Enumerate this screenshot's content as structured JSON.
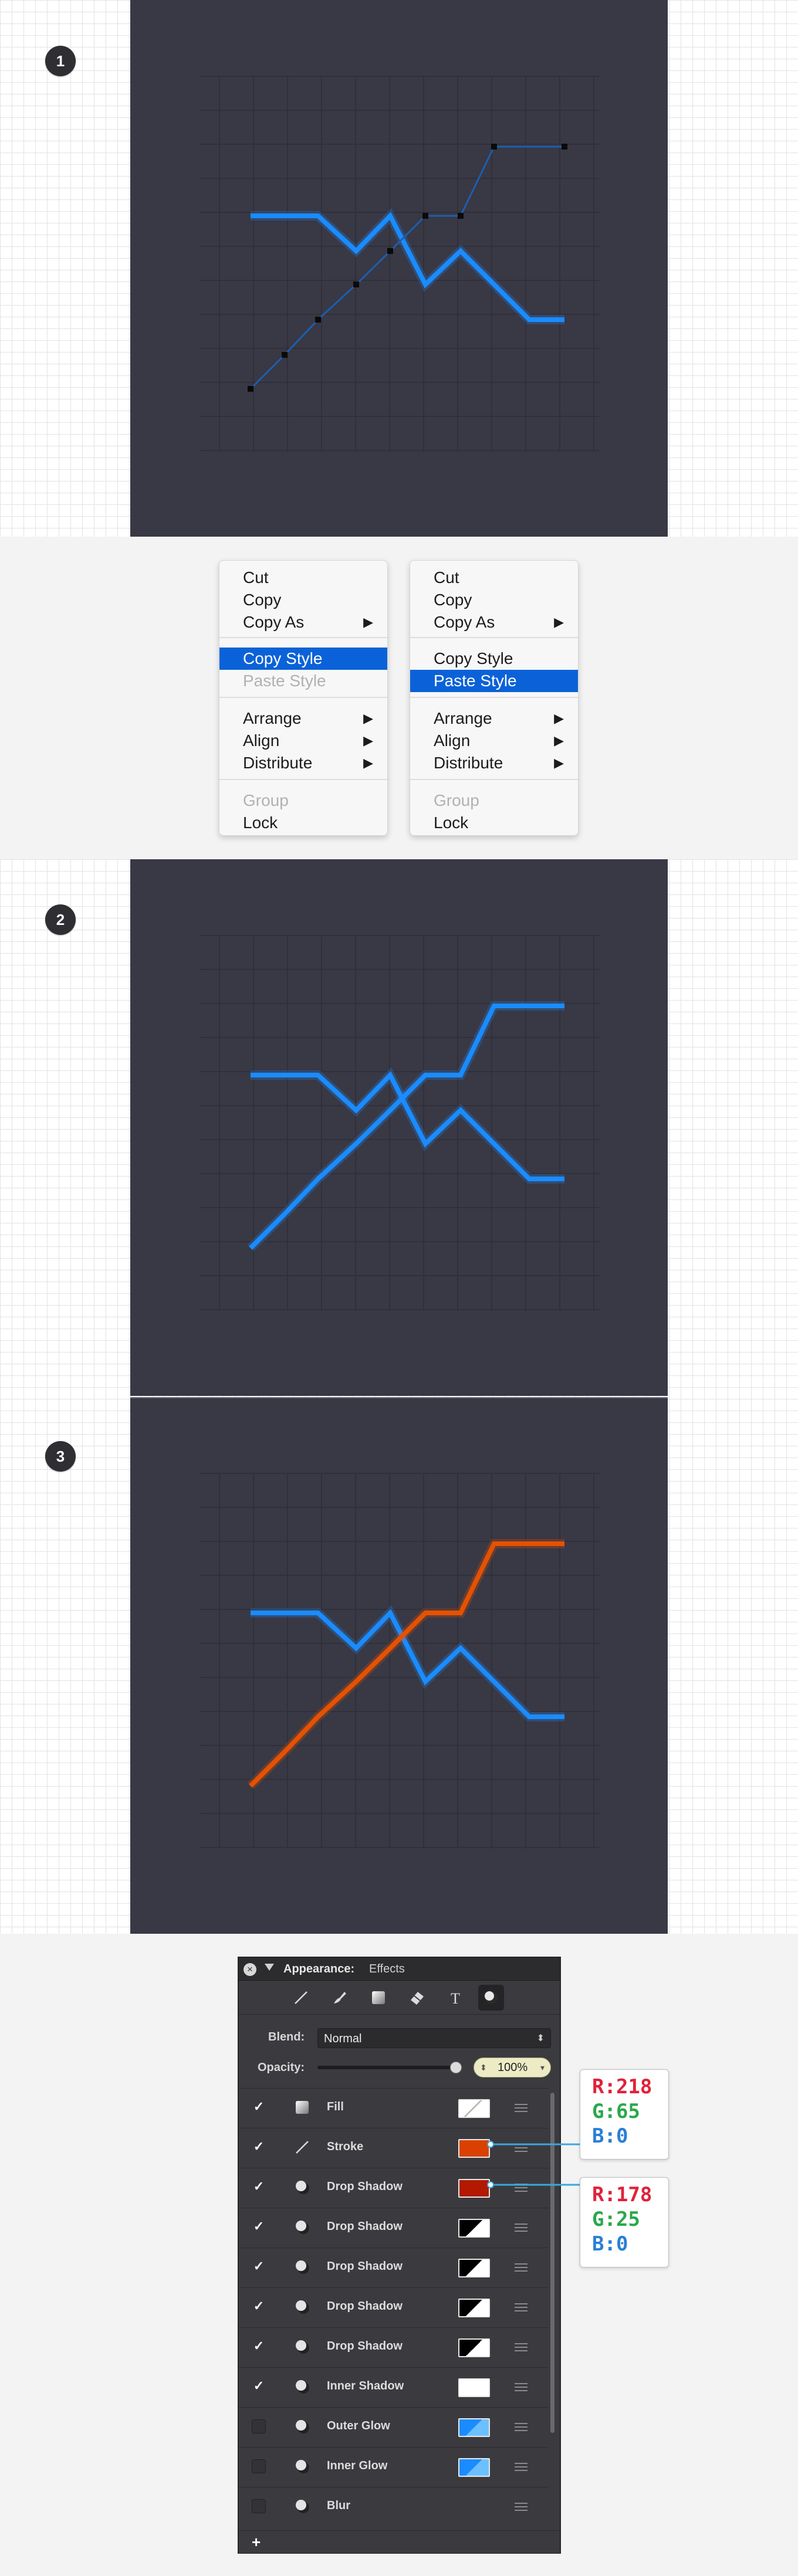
{
  "steps": [
    "1",
    "2",
    "3"
  ],
  "colors": {
    "canvas": "#393845",
    "blue_line": "#1a8cff",
    "orange_line": "#e65100",
    "menu_highlight": "#0b62d8",
    "stroke_swatch": "#da4100",
    "shadow_swatch": "#b21900"
  },
  "menu_left": {
    "items": [
      {
        "label": "Cut"
      },
      {
        "label": "Copy"
      },
      {
        "label": "Copy As",
        "submenu": true
      },
      {
        "label": "Copy Style",
        "highlighted": true
      },
      {
        "label": "Paste Style",
        "disabled": true
      },
      {
        "label": "Arrange",
        "submenu": true
      },
      {
        "label": "Align",
        "submenu": true
      },
      {
        "label": "Distribute",
        "submenu": true
      },
      {
        "label": "Group",
        "disabled": true
      },
      {
        "label": "Lock"
      }
    ]
  },
  "menu_right": {
    "items": [
      {
        "label": "Cut"
      },
      {
        "label": "Copy"
      },
      {
        "label": "Copy As",
        "submenu": true
      },
      {
        "label": "Copy Style"
      },
      {
        "label": "Paste Style",
        "highlighted": true
      },
      {
        "label": "Arrange",
        "submenu": true
      },
      {
        "label": "Align",
        "submenu": true
      },
      {
        "label": "Distribute",
        "submenu": true
      },
      {
        "label": "Group",
        "disabled": true
      },
      {
        "label": "Lock"
      }
    ]
  },
  "inspector": {
    "title": "Appearance:",
    "subtitle": "Effects",
    "tools": [
      "line-tool-icon",
      "brush-tool-icon",
      "fill-tool-icon",
      "eraser-tool-icon",
      "text-tool-icon",
      "effects-tool-icon"
    ],
    "blend_label": "Blend:",
    "blend_value": "Normal",
    "opacity_label": "Opacity:",
    "opacity_value": "100%",
    "opacity_level": 1.0,
    "effects": [
      {
        "label": "Fill",
        "checked": true,
        "icon": "fill-icon",
        "swatch": "fill-white-gradient"
      },
      {
        "label": "Stroke",
        "checked": true,
        "icon": "stroke-icon",
        "swatch": "#da4100"
      },
      {
        "label": "Drop Shadow",
        "checked": true,
        "icon": "shadow-icon",
        "swatch": "#b21900"
      },
      {
        "label": "Drop Shadow",
        "checked": true,
        "icon": "shadow-icon",
        "swatch": "black-white-diagonal"
      },
      {
        "label": "Drop Shadow",
        "checked": true,
        "icon": "shadow-icon",
        "swatch": "black-white-diagonal"
      },
      {
        "label": "Drop Shadow",
        "checked": true,
        "icon": "shadow-icon",
        "swatch": "black-white-diagonal"
      },
      {
        "label": "Drop Shadow",
        "checked": true,
        "icon": "shadow-icon",
        "swatch": "black-white-diagonal"
      },
      {
        "label": "Inner Shadow",
        "checked": true,
        "icon": "shadow-icon",
        "swatch": "#ffffff"
      },
      {
        "label": "Outer Glow",
        "checked": false,
        "icon": "shadow-icon",
        "swatch": "blue-gradient"
      },
      {
        "label": "Inner Glow",
        "checked": false,
        "icon": "shadow-icon",
        "swatch": "blue-gradient"
      },
      {
        "label": "Blur",
        "checked": false,
        "icon": "shadow-icon",
        "swatch": "none"
      }
    ],
    "add_label": "+"
  },
  "rgb_callouts": [
    {
      "r": "R:218",
      "g": "G:65",
      "b": "B:0"
    },
    {
      "r": "R:178",
      "g": "G:25",
      "b": "B:0"
    }
  ]
}
